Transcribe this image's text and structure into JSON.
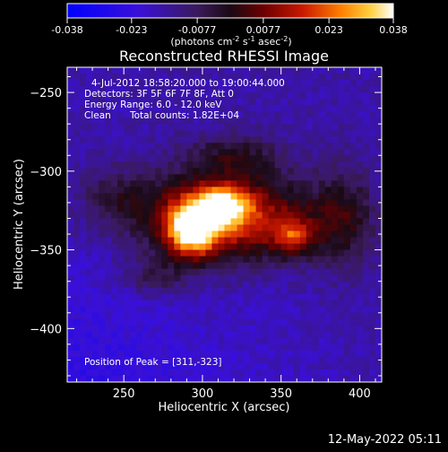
{
  "chart_data": {
    "type": "heatmap",
    "title": "Reconstructed RHESSI Image",
    "xlabel": "Heliocentric X (arcsec)",
    "ylabel": "Heliocentric Y (arcsec)",
    "xlim": [
      214,
      414
    ],
    "ylim": [
      -434,
      -234
    ],
    "x_ticks": [
      250,
      300,
      350,
      400
    ],
    "y_ticks": [
      -250,
      -300,
      -350,
      -400
    ],
    "grid": false,
    "colorbar": {
      "min": -0.038,
      "max": 0.038,
      "ticks": [
        "-0.038",
        "-0.023",
        "-0.0077",
        "0.0077",
        "0.023",
        "0.038"
      ],
      "tick_values": [
        -0.038,
        -0.023,
        -0.0077,
        0.0077,
        0.023,
        0.038
      ],
      "label_main": "(photons cm",
      "label_exp1": "-2",
      "label_s": " s",
      "label_exp2": "-1",
      "label_asec": " asec",
      "label_exp3": "-2",
      "label_close": ")"
    },
    "annotations": {
      "time": "4-Jul-2012 18:58:20.000 to 19:00:44.000",
      "detectors": "Detectors: 3F 5F 6F 7F 8F, Att 0",
      "energy": "Energy Range: 6.0 - 12.0 keV",
      "clean": "Clean",
      "counts": "Total counts: 1.82E+04",
      "peak": "Position of Peak = [311,-323]"
    },
    "peak": [
      311,
      -323
    ],
    "sources": [
      {
        "x": 293,
        "y": -337,
        "amp": 0.036,
        "sx": 11,
        "sy": 12
      },
      {
        "x": 313,
        "y": -322,
        "amp": 0.03,
        "sx": 11,
        "sy": 8
      },
      {
        "x": 300,
        "y": -330,
        "amp": 0.022,
        "sx": 30,
        "sy": 20
      },
      {
        "x": 340,
        "y": -330,
        "amp": 0.014,
        "sx": 28,
        "sy": 18
      },
      {
        "x": 358,
        "y": -342,
        "amp": 0.018,
        "sx": 9,
        "sy": 8
      },
      {
        "x": 390,
        "y": -330,
        "amp": 0.011,
        "sx": 14,
        "sy": 22
      },
      {
        "x": 320,
        "y": -290,
        "amp": 0.008,
        "sx": 22,
        "sy": 10
      },
      {
        "x": 245,
        "y": -318,
        "amp": 0.006,
        "sx": 16,
        "sy": 14
      },
      {
        "x": 270,
        "y": -368,
        "amp": 0.006,
        "sx": 14,
        "sy": 8
      }
    ],
    "background": -0.016,
    "lower_left_background": -0.025
  },
  "footer": {
    "date": "12-May-2022 05:11"
  }
}
